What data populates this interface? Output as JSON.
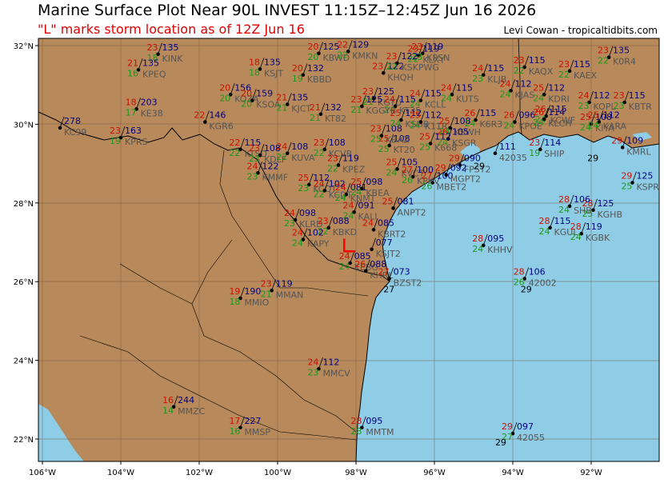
{
  "header": {
    "title": "Marine Surface Plot Near 90L INVEST 11:15Z–12:45Z Jun 16 2026",
    "subtitle": "\"L\" marks storm location as of 12Z Jun 16",
    "credit": "Levi Cowan - tropicaltidbits.com"
  },
  "colors": {
    "land": "#b8895a",
    "water": "#8fcde6",
    "temp": "#cc1100",
    "dew": "#1a9a1a",
    "pressure": "#000080",
    "station_id": "#555555",
    "storm_marker": "#ff0000"
  },
  "axes": {
    "lon_ticks": [
      "106°W",
      "104°W",
      "102°W",
      "100°W",
      "98°W",
      "96°W",
      "94°W",
      "92°W"
    ],
    "lat_ticks": [
      "32°N",
      "30°N",
      "28°N",
      "26°N",
      "24°N",
      "22°N"
    ]
  },
  "stations": [
    {
      "id": "KINK",
      "lon": -103.05,
      "lat": 31.78,
      "t": "23",
      "d": "18",
      "p": "135"
    },
    {
      "id": "KPEQ",
      "lon": -103.55,
      "lat": 31.38,
      "t": "21",
      "d": "16",
      "p": "135"
    },
    {
      "id": "KC99",
      "lon": -105.55,
      "lat": 29.9,
      "t": "",
      "d": "",
      "p": "278"
    },
    {
      "id": "KE38",
      "lon": -103.6,
      "lat": 30.38,
      "t": "18",
      "d": "17",
      "p": "203"
    },
    {
      "id": "KPRS",
      "lon": -104.0,
      "lat": 29.65,
      "t": "23",
      "d": "19",
      "p": "163"
    },
    {
      "id": "KGR6",
      "lon": -101.85,
      "lat": 30.05,
      "t": "22",
      "d": "",
      "p": "146"
    },
    {
      "id": "KSJT",
      "lon": -100.45,
      "lat": 31.4,
      "t": "18",
      "d": "18",
      "p": "135"
    },
    {
      "id": "KOZA",
      "lon": -101.2,
      "lat": 30.75,
      "t": "20",
      "d": "20",
      "p": "156"
    },
    {
      "id": "KSOA",
      "lon": -100.65,
      "lat": 30.6,
      "t": "20",
      "d": "20",
      "p": "159"
    },
    {
      "id": "KBBD",
      "lon": -99.35,
      "lat": 31.25,
      "t": "20",
      "d": "19",
      "p": "132"
    },
    {
      "id": "KJCT",
      "lon": -99.75,
      "lat": 30.5,
      "t": "21",
      "d": "21",
      "p": "135"
    },
    {
      "id": "KBWD",
      "lon": -98.95,
      "lat": 31.8,
      "t": "20",
      "d": "20",
      "p": "125"
    },
    {
      "id": "KMKN",
      "lon": -98.2,
      "lat": 31.85,
      "t": "22",
      "d": "22",
      "p": "129"
    },
    {
      "id": "KT82",
      "lon": -98.9,
      "lat": 30.25,
      "t": "21",
      "d": "21",
      "p": "132"
    },
    {
      "id": "KLXY",
      "lon": -96.4,
      "lat": 31.75,
      "t": "23",
      "d": "22",
      "p": "119"
    },
    {
      "id": "KPSN",
      "lon": -96.3,
      "lat": 31.8,
      "t": "23",
      "d": "23",
      "p": "119"
    },
    {
      "id": "KHQH",
      "lon": -97.3,
      "lat": 31.3,
      "t": "23",
      "d": "",
      "p": "122"
    },
    {
      "id": "KSKPWG",
      "lon": -96.95,
      "lat": 31.55,
      "t": "23",
      "d": "22",
      "p": "122"
    },
    {
      "id": "KUTS",
      "lon": -95.55,
      "lat": 30.75,
      "t": "24",
      "d": "24",
      "p": "115"
    },
    {
      "id": "KLJB",
      "lon": -94.75,
      "lat": 31.25,
      "t": "24",
      "d": "23",
      "p": "115"
    },
    {
      "id": "KJAS",
      "lon": -94.05,
      "lat": 30.85,
      "t": "24",
      "d": "24",
      "p": "112"
    },
    {
      "id": "KAQX",
      "lon": -93.7,
      "lat": 31.45,
      "t": "23",
      "d": "22",
      "p": "115"
    },
    {
      "id": "KAEX",
      "lon": -92.55,
      "lat": 31.35,
      "t": "23",
      "d": "22",
      "p": "115"
    },
    {
      "id": "K0R4",
      "lon": -91.55,
      "lat": 31.7,
      "t": "23",
      "d": "22",
      "p": "135"
    },
    {
      "id": "KOPL",
      "lon": -92.05,
      "lat": 30.55,
      "t": "24",
      "d": "23",
      "p": "112"
    },
    {
      "id": "KBTR",
      "lon": -91.15,
      "lat": 30.55,
      "t": "23",
      "d": "23",
      "p": "115"
    },
    {
      "id": "KIYA",
      "lon": -92.0,
      "lat": 30.0,
      "t": "25",
      "d": "24",
      "p": "108"
    },
    {
      "id": "KCWF",
      "lon": -93.15,
      "lat": 30.2,
      "t": "26",
      "d": "24",
      "p": "115"
    },
    {
      "id": "KARA",
      "lon": -91.8,
      "lat": 30.05,
      "t": "25",
      "d": "24",
      "p": "112"
    },
    {
      "id": "KDRI",
      "lon": -93.2,
      "lat": 30.75,
      "t": "25",
      "d": "24",
      "p": "112"
    },
    {
      "id": "KSWH",
      "lon": -95.6,
      "lat": 29.9,
      "t": "25",
      "d": "24",
      "p": "108"
    },
    {
      "id": "K6R3",
      "lon": -94.95,
      "lat": 30.1,
      "t": "26",
      "d": "24",
      "p": "115"
    },
    {
      "id": "KSGR",
      "lon": -95.65,
      "lat": 29.62,
      "t": "26",
      "d": "24",
      "p": "105"
    },
    {
      "id": "KPOE",
      "lon": -93.95,
      "lat": 30.05,
      "t": "26",
      "d": "24",
      "p": "096"
    },
    {
      "id": "KLCH",
      "lon": -93.2,
      "lat": 30.12,
      "t": "26",
      "d": "24",
      "p": "114"
    },
    {
      "id": "SHIP",
      "lon": -93.3,
      "lat": 29.35,
      "t": "23",
      "d": "19",
      "p": "114"
    },
    {
      "id": "FPST2",
      "lon": -95.35,
      "lat": 28.95,
      "t": "29",
      "d": "",
      "p": "090"
    },
    {
      "id": "42035",
      "lon": -94.45,
      "lat": 29.25,
      "t": "",
      "d": "",
      "p": "111"
    },
    {
      "id": "KMRL",
      "lon": -91.2,
      "lat": 29.4,
      "t": "29",
      "d": "",
      "p": "109"
    },
    {
      "id": "K668",
      "lon": -96.1,
      "lat": 29.5,
      "t": "25",
      "d": "25",
      "p": "112"
    },
    {
      "id": "KT20",
      "lon": -97.15,
      "lat": 29.45,
      "t": "25",
      "d": "25",
      "p": "108"
    },
    {
      "id": "KBAZ",
      "lon": -97.35,
      "lat": 29.7,
      "t": "23",
      "d": "25",
      "p": "108"
    },
    {
      "id": "KGTU",
      "lon": -97.55,
      "lat": 30.65,
      "t": "23",
      "d": "21",
      "p": "125"
    },
    {
      "id": "KT35",
      "lon": -97.0,
      "lat": 30.45,
      "t": "24",
      "d": "24",
      "p": "115"
    },
    {
      "id": "KCLL",
      "lon": -96.35,
      "lat": 30.6,
      "t": "24",
      "d": "24",
      "p": "115"
    },
    {
      "id": "KSHB",
      "lon": -96.85,
      "lat": 30.1,
      "t": "25",
      "d": "24",
      "p": "112"
    },
    {
      "id": "K11R",
      "lon": -96.35,
      "lat": 30.05,
      "t": "25",
      "d": "24",
      "p": "112"
    },
    {
      "id": "KGGYB",
      "lon": -97.85,
      "lat": 30.45,
      "t": "23",
      "d": "21",
      "p": "125"
    },
    {
      "id": "KCVB",
      "lon": -98.8,
      "lat": 29.35,
      "t": "23",
      "d": "22",
      "p": "108"
    },
    {
      "id": "KPEZ",
      "lon": -98.45,
      "lat": 28.95,
      "t": "23",
      "d": "22",
      "p": "119"
    },
    {
      "id": "KUVA",
      "lon": -99.75,
      "lat": 29.25,
      "t": "24",
      "d": "22",
      "p": "108"
    },
    {
      "id": "KTSD",
      "lon": -100.95,
      "lat": 29.35,
      "t": "22",
      "d": "22",
      "p": "115"
    },
    {
      "id": "KDLF",
      "lon": -100.45,
      "lat": 29.2,
      "t": "23",
      "d": "23",
      "p": "108"
    },
    {
      "id": "KMMF",
      "lon": -100.5,
      "lat": 28.75,
      "t": "24",
      "d": "23",
      "p": "122"
    },
    {
      "id": "KCOT",
      "lon": -99.2,
      "lat": 28.45,
      "t": "25",
      "d": "23",
      "p": "112"
    },
    {
      "id": "KCDT",
      "lon": -98.8,
      "lat": 28.3,
      "t": "24",
      "d": "22",
      "p": "102"
    },
    {
      "id": "KNMT",
      "lon": -98.25,
      "lat": 28.2,
      "t": "24",
      "d": "24",
      "p": "081"
    },
    {
      "id": "KBEA",
      "lon": -97.85,
      "lat": 28.35,
      "t": "25",
      "d": "24",
      "p": "098"
    },
    {
      "id": "KVCT",
      "lon": -96.95,
      "lat": 28.85,
      "t": "25",
      "d": "24",
      "p": "105"
    },
    {
      "id": "KPKV",
      "lon": -96.55,
      "lat": 28.65,
      "t": "27",
      "d": "26",
      "p": "100"
    },
    {
      "id": "MBET2",
      "lon": -96.05,
      "lat": 28.5,
      "t": "27",
      "d": "26",
      "p": "100"
    },
    {
      "id": "MGPT2",
      "lon": -95.7,
      "lat": 28.7,
      "t": "29",
      "d": "",
      "p": "092"
    },
    {
      "id": "ANPT2",
      "lon": -97.05,
      "lat": 27.85,
      "t": "25",
      "d": "",
      "p": "081"
    },
    {
      "id": "KALI",
      "lon": -98.05,
      "lat": 27.75,
      "t": "24",
      "d": "24",
      "p": "091"
    },
    {
      "id": "KLRD",
      "lon": -99.55,
      "lat": 27.55,
      "t": "24",
      "d": "23",
      "p": "098"
    },
    {
      "id": "KBKD",
      "lon": -98.7,
      "lat": 27.35,
      "t": "23",
      "d": "22",
      "p": "088"
    },
    {
      "id": "KBRT2",
      "lon": -97.55,
      "lat": 27.3,
      "t": "24",
      "d": "",
      "p": "085"
    },
    {
      "id": "KAPY",
      "lon": -99.35,
      "lat": 27.05,
      "t": "24",
      "d": "24",
      "p": "102"
    },
    {
      "id": "KSJT2",
      "lon": -97.6,
      "lat": 26.8,
      "t": "",
      "d": "",
      "p": "077"
    },
    {
      "id": "KEBG",
      "lon": -98.15,
      "lat": 26.45,
      "t": "24",
      "d": "24",
      "p": "085"
    },
    {
      "id": "KHRL",
      "lon": -97.75,
      "lat": 26.25,
      "t": "26",
      "d": "",
      "p": "088"
    },
    {
      "id": "BZST2",
      "lon": -97.15,
      "lat": 26.05,
      "t": "27",
      "d": "",
      "p": "073"
    },
    {
      "id": "KGHB",
      "lon": -91.95,
      "lat": 27.8,
      "t": "28",
      "d": "25",
      "p": "125"
    },
    {
      "id": "SHB",
      "lon": -92.55,
      "lat": 27.9,
      "t": "28",
      "d": "24",
      "p": "106"
    },
    {
      "id": "KSPR",
      "lon": -90.95,
      "lat": 28.5,
      "t": "29",
      "d": "25",
      "p": "125"
    },
    {
      "id": "KGUL",
      "lon": -93.05,
      "lat": 27.35,
      "t": "28",
      "d": "24",
      "p": "115"
    },
    {
      "id": "KGBK",
      "lon": -92.25,
      "lat": 27.2,
      "t": "28",
      "d": "24",
      "p": "119"
    },
    {
      "id": "KHHV",
      "lon": -94.75,
      "lat": 26.9,
      "t": "28",
      "d": "24",
      "p": "095"
    },
    {
      "id": "42002",
      "lon": -93.7,
      "lat": 26.05,
      "t": "28",
      "d": "26",
      "p": "106"
    },
    {
      "id": "MMAN",
      "lon": -100.15,
      "lat": 25.75,
      "t": "23",
      "d": "21",
      "p": "119"
    },
    {
      "id": "MMIO",
      "lon": -100.95,
      "lat": 25.55,
      "t": "19",
      "d": "18",
      "p": "190"
    },
    {
      "id": "MMCV",
      "lon": -98.95,
      "lat": 23.75,
      "t": "24",
      "d": "23",
      "p": "112"
    },
    {
      "id": "MMZC",
      "lon": -102.65,
      "lat": 22.78,
      "t": "16",
      "d": "14",
      "p": "244"
    },
    {
      "id": "MMSP",
      "lon": -100.95,
      "lat": 22.25,
      "t": "17",
      "d": "16",
      "p": "227"
    },
    {
      "id": "MMTM",
      "lon": -97.85,
      "lat": 22.25,
      "t": "28",
      "d": "28",
      "p": "095"
    },
    {
      "id": "42055",
      "lon": -94.0,
      "lat": 22.1,
      "t": "29",
      "d": "27",
      "p": "097"
    }
  ],
  "buoy_temps": [
    {
      "lon": -92.1,
      "lat": 29.05,
      "t": "29"
    },
    {
      "lon": -93.8,
      "lat": 25.7,
      "t": "29"
    },
    {
      "lon": -94.45,
      "lat": 21.8,
      "t": "29"
    },
    {
      "lon": -97.3,
      "lat": 25.7,
      "t": "27"
    },
    {
      "lon": -95.0,
      "lat": 28.85,
      "t": "29"
    }
  ],
  "storm": {
    "label": "L",
    "lon": -98.3,
    "lat": 26.75
  }
}
